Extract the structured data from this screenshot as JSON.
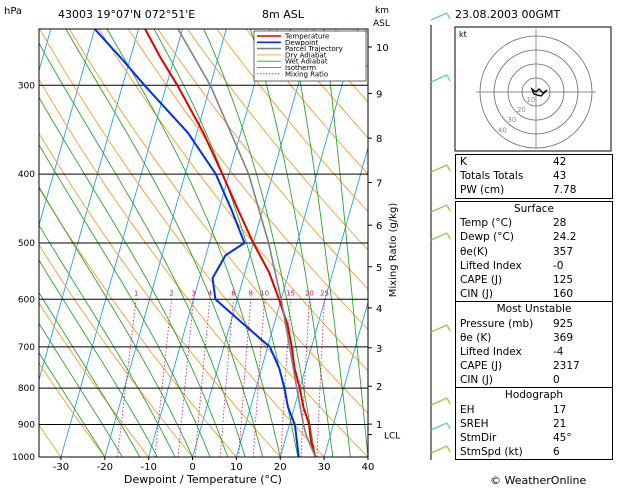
{
  "header": {
    "hpa_label": "hPa",
    "station": "43003  19°07'N  072°51'E",
    "elevation": "8m  ASL",
    "km_label": "km",
    "asl_label": "ASL",
    "datetime": "23.08.2003  00GMT"
  },
  "footer": {
    "xlabel": "Dewpoint / Temperature (°C)",
    "brand": "© WeatherOnline"
  },
  "chart_data": {
    "type": "line",
    "title": "",
    "xlabel": "Dewpoint / Temperature (°C)",
    "ylabel": "hPa",
    "xlim": [
      -35,
      40
    ],
    "plim": [
      250,
      1000
    ],
    "skew_deg_per_decade": 46,
    "x_ticks": [
      -30,
      -20,
      -10,
      0,
      10,
      20,
      30,
      40
    ],
    "pressure_ticks": [
      300,
      400,
      500,
      600,
      700,
      800,
      900,
      1000
    ],
    "km_ticks": [
      {
        "label": "10",
        "p": 265
      },
      {
        "label": "9",
        "p": 308
      },
      {
        "label": "8",
        "p": 356
      },
      {
        "label": "7",
        "p": 411
      },
      {
        "label": "6",
        "p": 472
      },
      {
        "label": "5",
        "p": 540
      },
      {
        "label": "4",
        "p": 617
      },
      {
        "label": "3",
        "p": 702
      },
      {
        "label": "2",
        "p": 795
      },
      {
        "label": "1",
        "p": 899
      }
    ],
    "lcl": {
      "label": "LCL",
      "p": 930
    },
    "mixing_ratio_labels": [
      "1",
      "2",
      "3",
      "4",
      "6",
      "8",
      "10",
      "15",
      "20",
      "25"
    ],
    "mixing_ratio_values": [
      1,
      2,
      3,
      4,
      6,
      8,
      10,
      15,
      20,
      25
    ],
    "mixing_ratio_axis_label": "Mixing Ratio (g/kg)",
    "legend": [
      "Temperature",
      "Dewpoint",
      "Parcel Trajectory",
      "Dry Adiabat",
      "Wet Adiabat",
      "Isotherm",
      "Mixing Ratio"
    ],
    "series": [
      {
        "name": "Temperature",
        "color": "#e00000",
        "points": [
          [
            1000,
            28
          ],
          [
            950,
            26
          ],
          [
            925,
            25.2
          ],
          [
            900,
            24.5
          ],
          [
            850,
            22
          ],
          [
            800,
            20
          ],
          [
            750,
            17.5
          ],
          [
            700,
            15.5
          ],
          [
            650,
            13
          ],
          [
            600,
            9.5
          ],
          [
            550,
            5.5
          ],
          [
            500,
            0
          ],
          [
            450,
            -5.5
          ],
          [
            400,
            -11.5
          ],
          [
            350,
            -18.5
          ],
          [
            300,
            -27.5
          ],
          [
            275,
            -33
          ],
          [
            250,
            -38.5
          ]
        ]
      },
      {
        "name": "Dewpoint",
        "color": "#0030e0",
        "points": [
          [
            1000,
            24.2
          ],
          [
            925,
            22
          ],
          [
            900,
            21.2
          ],
          [
            850,
            18.5
          ],
          [
            800,
            16.5
          ],
          [
            750,
            14
          ],
          [
            700,
            10.5
          ],
          [
            650,
            3
          ],
          [
            600,
            -5
          ],
          [
            560,
            -7
          ],
          [
            520,
            -5.5
          ],
          [
            500,
            -2
          ],
          [
            450,
            -7
          ],
          [
            400,
            -13
          ],
          [
            350,
            -22
          ],
          [
            300,
            -35
          ],
          [
            275,
            -42
          ],
          [
            250,
            -50
          ]
        ]
      },
      {
        "name": "Parcel Trajectory",
        "color": "#808080",
        "points": [
          [
            1000,
            28
          ],
          [
            930,
            24.4
          ],
          [
            900,
            23.2
          ],
          [
            850,
            21.3
          ],
          [
            800,
            19.3
          ],
          [
            700,
            15
          ],
          [
            600,
            10
          ],
          [
            500,
            3.5
          ],
          [
            400,
            -5.5
          ],
          [
            300,
            -20
          ],
          [
            250,
            -31
          ]
        ]
      }
    ]
  },
  "hodograph": {
    "kt_label": "kt",
    "ring_labels": [
      "10",
      "20",
      "30",
      "40"
    ]
  },
  "stats": {
    "index_rows": [
      {
        "label": "K",
        "value": "42"
      },
      {
        "label": "Totals Totals",
        "value": "43"
      },
      {
        "label": "PW (cm)",
        "value": "7.78"
      }
    ],
    "surface": {
      "title": "Surface",
      "rows": [
        {
          "label": "Temp (°C)",
          "value": "28"
        },
        {
          "label": "Dewp (°C)",
          "value": "24.2"
        },
        {
          "label": "θe(K)",
          "value": "357"
        },
        {
          "label": "Lifted Index",
          "value": "-0"
        },
        {
          "label": "CAPE (J)",
          "value": "125"
        },
        {
          "label": "CIN (J)",
          "value": "160"
        }
      ]
    },
    "most_unstable": {
      "title": "Most Unstable",
      "rows": [
        {
          "label": "Pressure (mb)",
          "value": "925"
        },
        {
          "label": "θe (K)",
          "value": "369"
        },
        {
          "label": "Lifted Index",
          "value": "-4"
        },
        {
          "label": "CAPE (J)",
          "value": "2317"
        },
        {
          "label": "CIN (J)",
          "value": "0"
        }
      ]
    },
    "hodograph": {
      "title": "Hodograph",
      "rows": [
        {
          "label": "EH",
          "value": "17"
        },
        {
          "label": "SREH",
          "value": "21"
        },
        {
          "label": "StmDir",
          "value": "45°"
        },
        {
          "label": "StmSpd (kt)",
          "value": "6"
        }
      ]
    }
  },
  "colors": {
    "isotherm": "#2aa0e0",
    "dry_adiabat": "#f0a030",
    "wet_adiabat": "#30a030",
    "mixing_ratio": "#d01070",
    "wind_barb": "#5ad0c0",
    "wind_barb_low": "#90d040"
  }
}
